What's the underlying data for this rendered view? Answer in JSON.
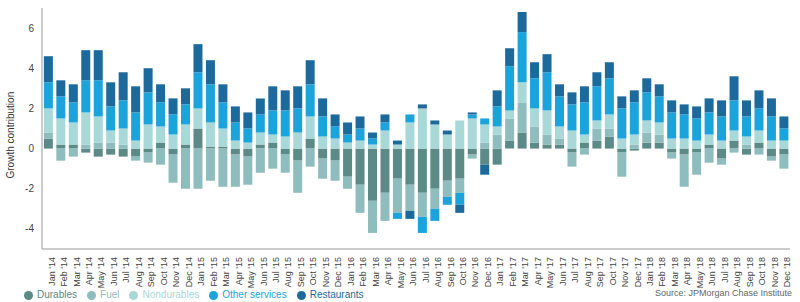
{
  "chart_data": {
    "type": "bar",
    "stacked": true,
    "grid": false,
    "legend": "bottom-left",
    "y_label": "Growth contribution",
    "source": "Source: JPMorgan Chase Institute",
    "categories": [
      "Jan '14",
      "Feb '14",
      "Mar '14",
      "Apr '14",
      "May '14",
      "Jun '14",
      "Jul '14",
      "Aug '14",
      "Sep '14",
      "Oct '14",
      "Nov '14",
      "Dec '14",
      "Jan '15",
      "Feb '15",
      "Mar '15",
      "Apr '15",
      "May '15",
      "Jun '15",
      "Jul '15",
      "Aug '15",
      "Sep '15",
      "Oct '15",
      "Nov '15",
      "Dec '15",
      "Jan '16",
      "Feb '16",
      "Mar '16",
      "Apr '16",
      "May '16",
      "Jun '16",
      "Jul '16",
      "Aug '16",
      "Sep '16",
      "Oct '16",
      "Nov '16",
      "Dec '16",
      "Jan '17",
      "Feb '17",
      "Mar '17",
      "Apr '17",
      "May '17",
      "Jun '17",
      "Jul '17",
      "Aug '17",
      "Sep '17",
      "Oct '17",
      "Nov '17",
      "Dec '17",
      "Jan '18",
      "Feb '18",
      "Mar '18",
      "Apr '18",
      "May '18",
      "Jun '18",
      "Jul '18",
      "Aug '18",
      "Sep '18",
      "Oct '18",
      "Nov '18",
      "Dec '18"
    ],
    "ylim": [
      -5,
      7
    ],
    "yticks": [
      -4,
      -2,
      0,
      2,
      4,
      6
    ],
    "series": [
      {
        "name": "Durables",
        "color": "#5b8a87",
        "values": [
          0.5,
          0.2,
          0.2,
          -0.2,
          -0.4,
          -0.3,
          -0.4,
          -0.4,
          -0.2,
          0.3,
          -0.3,
          0.2,
          1.0,
          0.1,
          0.1,
          -0.3,
          -0.4,
          0.2,
          0.3,
          -0.3,
          -0.6,
          0.5,
          -0.5,
          -0.6,
          -1.4,
          -1.8,
          -2.6,
          -2.2,
          -1.5,
          -1.8,
          -2.2,
          -2.0,
          -1.6,
          -1.5,
          -0.3,
          -0.8,
          -0.8,
          0.4,
          0.8,
          0.3,
          0.2,
          0.2,
          -0.2,
          0.3,
          0.4,
          0.6,
          -0.2,
          -0.1,
          0.3,
          0.3,
          -0.2,
          -0.3,
          -0.2,
          0.2,
          -0.5,
          0.4,
          -0.3,
          0.3,
          -0.4,
          -0.3
        ]
      },
      {
        "name": "Fuel",
        "color": "#8fbcbc",
        "values": [
          0.3,
          -0.6,
          -0.4,
          0.2,
          0.3,
          0.3,
          0.2,
          -0.2,
          -0.5,
          -0.8,
          -1.4,
          -2.0,
          -2.0,
          -1.6,
          -1.9,
          -1.6,
          -1.4,
          -1.2,
          -1.0,
          -0.9,
          -1.6,
          -0.9,
          -1.0,
          -1.0,
          -0.6,
          -1.4,
          -1.6,
          -1.4,
          -1.7,
          -1.3,
          -1.2,
          -1.0,
          -0.8,
          -0.7,
          -0.2,
          0.3,
          0.7,
          1.1,
          1.5,
          0.8,
          0.5,
          0.3,
          -0.7,
          -0.3,
          0.6,
          0.4,
          -1.2,
          0.2,
          0.5,
          0.4,
          -0.3,
          -1.6,
          -1.1,
          -0.7,
          -0.3,
          -0.2,
          0.2,
          -0.3,
          -0.2,
          -0.7
        ]
      },
      {
        "name": "Nondurables",
        "color": "#a9d8d8",
        "values": [
          1.2,
          1.3,
          1.1,
          1.6,
          1.3,
          0.6,
          0.8,
          0.4,
          1.2,
          0.8,
          0.7,
          1.0,
          1.0,
          1.2,
          0.9,
          0.4,
          0.3,
          0.6,
          0.4,
          0.6,
          0.8,
          1.1,
          0.6,
          0.5,
          0.3,
          0.4,
          0.2,
          0.9,
          0.2,
          1.3,
          2.0,
          1.2,
          0.7,
          1.4,
          1.5,
          0.9,
          0.4,
          0.4,
          1.0,
          0.9,
          1.2,
          0.6,
          0.9,
          0.4,
          0.4,
          0.7,
          0.5,
          0.5,
          0.6,
          0.6,
          0.5,
          0.5,
          0.4,
          0.5,
          0.4,
          0.5,
          0.4,
          0.6,
          0.4,
          0.4
        ]
      },
      {
        "name": "Other services",
        "color": "#1ba3dc",
        "values": [
          1.3,
          1.1,
          1.0,
          1.6,
          1.8,
          1.2,
          1.4,
          1.4,
          1.6,
          1.2,
          1.0,
          1.0,
          1.8,
          1.9,
          1.3,
          0.9,
          0.7,
          0.9,
          1.2,
          1.3,
          1.2,
          1.6,
          1.0,
          0.6,
          0.4,
          0.6,
          0.3,
          0.4,
          -0.3,
          0.4,
          -0.8,
          -0.6,
          -0.4,
          -0.6,
          0.2,
          0.3,
          1.0,
          2.2,
          2.5,
          1.5,
          1.9,
          1.5,
          1.3,
          1.6,
          1.7,
          1.8,
          1.5,
          1.6,
          1.4,
          1.3,
          1.3,
          1.2,
          1.1,
          1.1,
          1.2,
          1.5,
          1.0,
          1.1,
          1.2,
          0.6
        ]
      },
      {
        "name": "Restaurants",
        "color": "#1c6a9c",
        "values": [
          1.3,
          0.8,
          0.9,
          1.5,
          1.5,
          1.2,
          1.4,
          1.3,
          1.2,
          0.9,
          0.8,
          0.8,
          1.4,
          1.2,
          0.9,
          0.8,
          0.8,
          0.8,
          1.2,
          1.0,
          1.1,
          1.2,
          0.9,
          0.6,
          0.6,
          0.6,
          0.3,
          0.4,
          0.2,
          -0.4,
          0.2,
          0.2,
          0.2,
          -0.4,
          0.1,
          -0.5,
          0.8,
          0.9,
          1.0,
          0.8,
          0.9,
          0.6,
          0.6,
          0.8,
          0.7,
          0.8,
          0.6,
          0.6,
          0.7,
          0.6,
          0.6,
          0.5,
          0.6,
          0.7,
          0.8,
          1.2,
          0.8,
          0.9,
          0.9,
          0.6
        ]
      }
    ]
  }
}
